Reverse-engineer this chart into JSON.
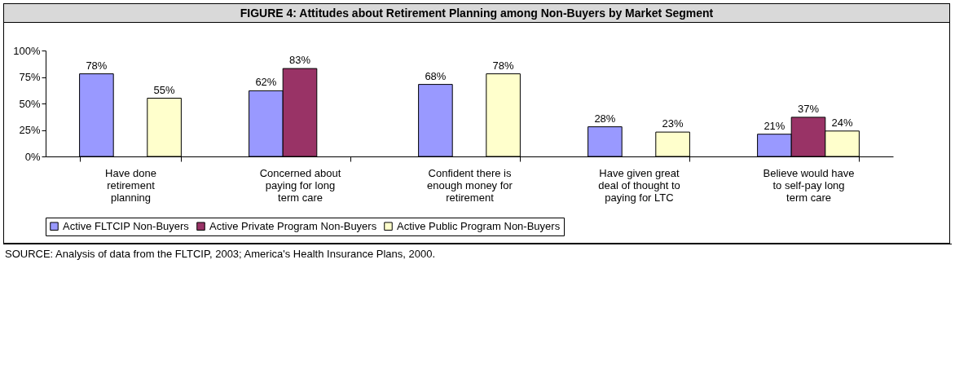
{
  "chart_data": {
    "type": "bar",
    "title": "FIGURE 4: Attitudes about Retirement Planning among Non-Buyers by Market Segment",
    "categories": [
      "Have done retirement planning",
      "Concerned about paying for long term care",
      "Confident there is enough money for retirement",
      "Have given great deal of thought to paying for LTC",
      "Believe would have to self-pay long term care"
    ],
    "series": [
      {
        "name": "Active FLTCIP Non-Buyers",
        "color": "#9999ff",
        "values": [
          78,
          62,
          68,
          28,
          21
        ],
        "value_labels": [
          "78%",
          "62%",
          "68%",
          "28%",
          "21%"
        ]
      },
      {
        "name": "Active Private Program Non-Buyers",
        "color": "#993366",
        "values": [
          null,
          83,
          null,
          null,
          37
        ],
        "value_labels": [
          null,
          "83%",
          null,
          null,
          "37%"
        ]
      },
      {
        "name": "Active Public Program Non-Buyers",
        "color": "#ffffcc",
        "values": [
          55,
          null,
          78,
          23,
          24
        ],
        "value_labels": [
          "55%",
          null,
          "78%",
          "23%",
          "24%"
        ]
      }
    ],
    "ylim": [
      0,
      100
    ],
    "yticks": [
      {
        "value": 0,
        "label": "0%"
      },
      {
        "value": 25,
        "label": "25%"
      },
      {
        "value": 50,
        "label": "50%"
      },
      {
        "value": 75,
        "label": "75%"
      },
      {
        "value": 100,
        "label": "100%"
      }
    ],
    "grid": false,
    "legend": "bottom",
    "annotations": [
      "SOURCE: Analysis of data from the FLTCIP, 2003; America's Health Insurance Plans, 2000."
    ]
  }
}
